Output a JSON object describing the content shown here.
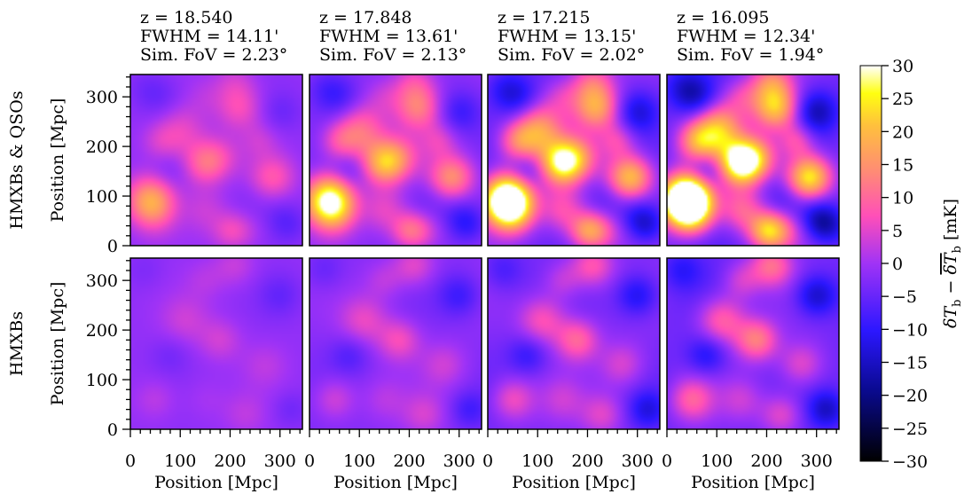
{
  "chart_data": {
    "type": "heatmap",
    "columns": [
      {
        "z_label": "z = 18.540",
        "fwhm_label": "FWHM = 14.11'",
        "fov_label": "Sim. FoV = 2.23°",
        "field_scale": 0.3
      },
      {
        "z_label": "z = 17.848",
        "fwhm_label": "FWHM = 13.61'",
        "fov_label": "Sim. FoV = 2.13°",
        "field_scale": 0.55
      },
      {
        "z_label": "z = 17.215",
        "fwhm_label": "FWHM = 13.15'",
        "fov_label": "Sim. FoV = 2.02°",
        "field_scale": 0.8
      },
      {
        "z_label": "z = 16.095",
        "fwhm_label": "FWHM = 12.34'",
        "fov_label": "Sim. FoV = 1.94°",
        "field_scale": 1.0
      }
    ],
    "rows": [
      {
        "label": "HMXBs & QSOs",
        "ylabel": "Position [Mpc]"
      },
      {
        "label": "HMXBs",
        "ylabel": "Position [Mpc]"
      }
    ],
    "xlabel": "Position [Mpc]",
    "axis_range": [
      0,
      345
    ],
    "ticks": [
      "0",
      "100",
      "200",
      "300"
    ],
    "colorbar": {
      "label_main": "δT",
      "label_sub": "b",
      "label_minus": " − ",
      "label_bar": "δT",
      "label_bar_sub": "b",
      "label_unit": "  [mK]",
      "vmin": -30,
      "vmax": 30,
      "ticks": [
        "30",
        "25",
        "20",
        "15",
        "10",
        "5",
        "0",
        "−5",
        "−10",
        "−15",
        "−20",
        "−25",
        "−30"
      ],
      "colormap": "gnuplot2"
    },
    "features_qso": [
      [
        40,
        92,
        34,
        60
      ],
      [
        148,
        165,
        30,
        34
      ],
      [
        218,
        277,
        32,
        24
      ],
      [
        200,
        30,
        26,
        20
      ],
      [
        62,
        210,
        28,
        18
      ],
      [
        290,
        140,
        30,
        22
      ],
      [
        100,
        250,
        32,
        10
      ],
      [
        260,
        210,
        26,
        12
      ],
      [
        300,
        60,
        28,
        -8
      ],
      [
        60,
        300,
        30,
        -10
      ],
      [
        150,
        80,
        30,
        8
      ],
      [
        240,
        95,
        30,
        -6
      ]
    ],
    "features_hmxb": [
      [
        110,
        220,
        34,
        14
      ],
      [
        180,
        180,
        30,
        16
      ],
      [
        50,
        60,
        30,
        12
      ],
      [
        270,
        130,
        32,
        10
      ],
      [
        210,
        330,
        30,
        14
      ],
      [
        80,
        150,
        28,
        -8
      ],
      [
        300,
        270,
        30,
        -12
      ],
      [
        150,
        60,
        30,
        6
      ],
      [
        30,
        320,
        28,
        -6
      ],
      [
        230,
        30,
        30,
        10
      ],
      [
        320,
        40,
        26,
        -10
      ],
      [
        150,
        300,
        28,
        8
      ]
    ]
  }
}
